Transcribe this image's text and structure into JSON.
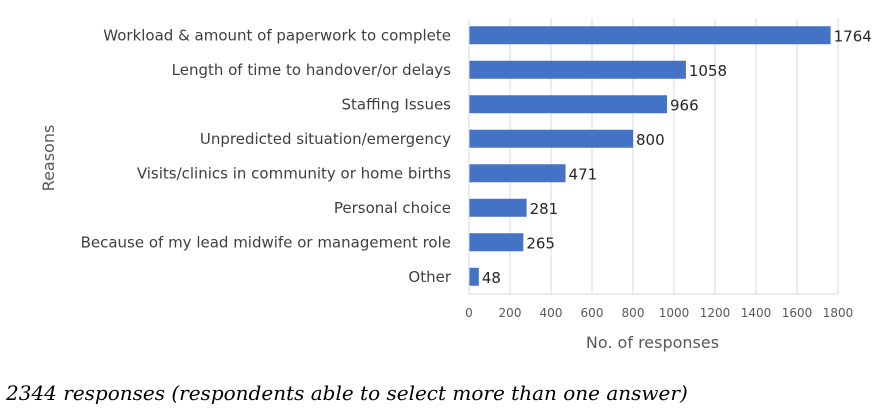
{
  "chart_data": {
    "type": "bar",
    "orientation": "horizontal",
    "categories": [
      "Workload & amount of paperwork to complete",
      "Length of time to handover/or delays",
      "Staffing Issues",
      "Unpredicted situation/emergency",
      "Visits/clinics in community or home births",
      "Personal choice",
      "Because of my lead midwife or management role",
      "Other"
    ],
    "values": [
      1764,
      1058,
      966,
      800,
      471,
      281,
      265,
      48
    ],
    "xlabel": "No. of responses",
    "ylabel": "Reasons",
    "xlim": [
      0,
      1800
    ],
    "xticks": [
      0,
      200,
      400,
      600,
      800,
      1000,
      1200,
      1400,
      1600,
      1800
    ],
    "grid": "vertical",
    "bar_color": "#4472c4",
    "data_labels": true
  },
  "caption": "2344 responses (respondents able to select more than one answer)"
}
